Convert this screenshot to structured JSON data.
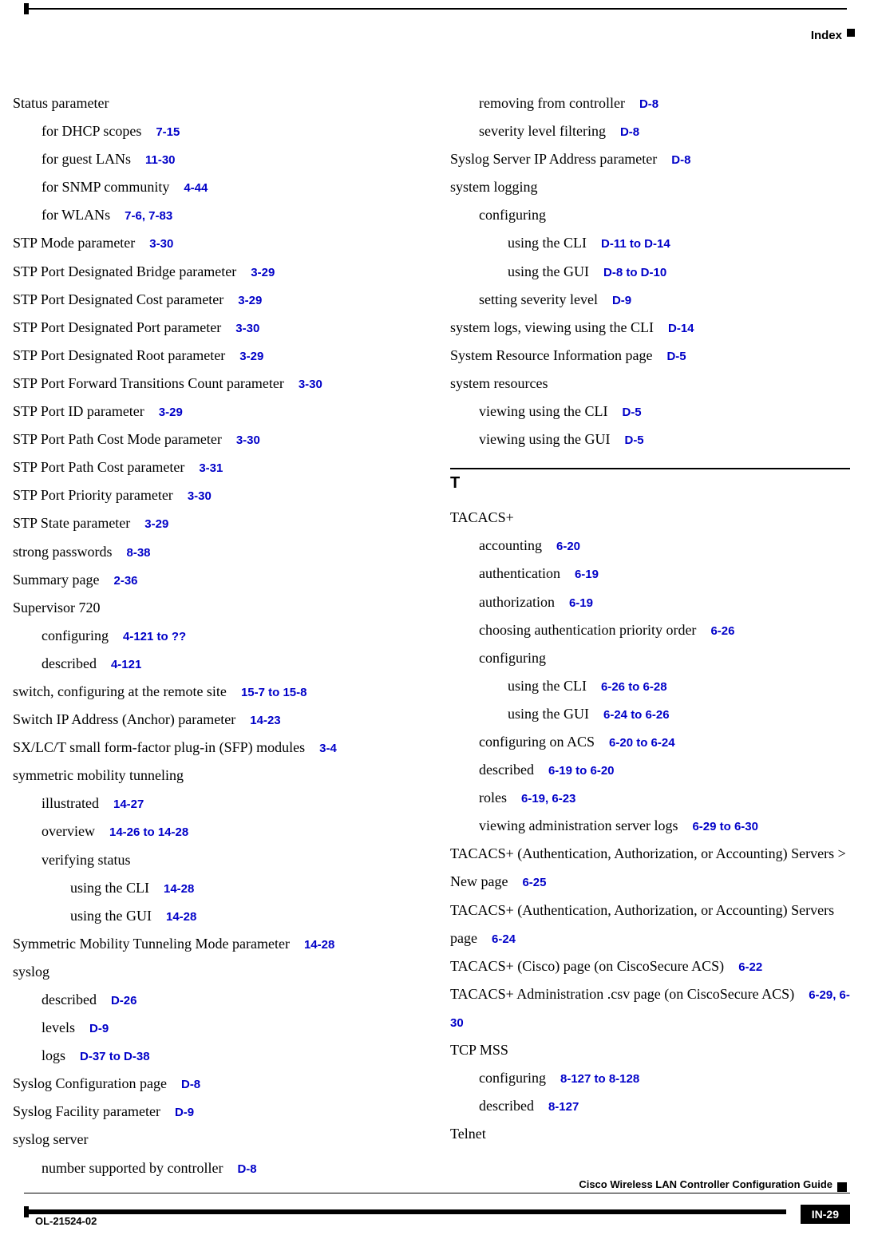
{
  "running_head": "Index",
  "footer": {
    "title": "Cisco Wireless LAN Controller Configuration Guide",
    "docid": "OL-21524-02",
    "pagenum": "IN-29"
  },
  "sections": {
    "T": "T"
  },
  "left": [
    {
      "lvl": 0,
      "text": "Status parameter"
    },
    {
      "lvl": 1,
      "text": "for DHCP scopes",
      "ref": "7-15"
    },
    {
      "lvl": 1,
      "text": "for guest LANs",
      "ref": "11-30"
    },
    {
      "lvl": 1,
      "text": "for SNMP community",
      "ref": "4-44"
    },
    {
      "lvl": 1,
      "text": "for WLANs",
      "ref": "7-6, 7-83"
    },
    {
      "lvl": 0,
      "text": "STP Mode parameter",
      "ref": "3-30"
    },
    {
      "lvl": 0,
      "text": "STP Port Designated Bridge parameter",
      "ref": "3-29"
    },
    {
      "lvl": 0,
      "text": "STP Port Designated Cost parameter",
      "ref": "3-29"
    },
    {
      "lvl": 0,
      "text": "STP Port Designated Port parameter",
      "ref": "3-30"
    },
    {
      "lvl": 0,
      "text": "STP Port Designated Root parameter",
      "ref": "3-29"
    },
    {
      "lvl": 0,
      "text": "STP Port Forward Transitions Count parameter",
      "ref": "3-30"
    },
    {
      "lvl": 0,
      "text": "STP Port ID parameter",
      "ref": "3-29"
    },
    {
      "lvl": 0,
      "text": "STP Port Path Cost Mode parameter",
      "ref": "3-30"
    },
    {
      "lvl": 0,
      "text": "STP Port Path Cost parameter",
      "ref": "3-31"
    },
    {
      "lvl": 0,
      "text": "STP Port Priority parameter",
      "ref": "3-30"
    },
    {
      "lvl": 0,
      "text": "STP State parameter",
      "ref": "3-29"
    },
    {
      "lvl": 0,
      "text": "strong passwords",
      "ref": "8-38"
    },
    {
      "lvl": 0,
      "text": "Summary page",
      "ref": "2-36"
    },
    {
      "lvl": 0,
      "text": "Supervisor 720"
    },
    {
      "lvl": 1,
      "text": "configuring",
      "ref": "4-121 to ??"
    },
    {
      "lvl": 1,
      "text": "described",
      "ref": "4-121"
    },
    {
      "lvl": 0,
      "text": "switch, configuring at the remote site",
      "ref": "15-7 to 15-8"
    },
    {
      "lvl": 0,
      "text": "Switch IP Address (Anchor) parameter",
      "ref": "14-23"
    },
    {
      "lvl": 0,
      "text": "SX/LC/T small form-factor plug-in (SFP) modules",
      "ref": "3-4"
    },
    {
      "lvl": 0,
      "text": "symmetric mobility tunneling"
    },
    {
      "lvl": 1,
      "text": "illustrated",
      "ref": "14-27"
    },
    {
      "lvl": 1,
      "text": "overview",
      "ref": "14-26 to 14-28"
    },
    {
      "lvl": 1,
      "text": "verifying status"
    },
    {
      "lvl": 2,
      "text": "using the CLI",
      "ref": "14-28"
    },
    {
      "lvl": 2,
      "text": "using the GUI",
      "ref": "14-28"
    },
    {
      "lvl": 0,
      "text": "Symmetric Mobility Tunneling Mode parameter",
      "ref": "14-28"
    },
    {
      "lvl": 0,
      "text": "syslog"
    },
    {
      "lvl": 1,
      "text": "described",
      "ref": "D-26"
    },
    {
      "lvl": 1,
      "text": "levels",
      "ref": "D-9"
    },
    {
      "lvl": 1,
      "text": "logs",
      "ref": "D-37 to D-38"
    },
    {
      "lvl": 0,
      "text": "Syslog Configuration page",
      "ref": "D-8"
    },
    {
      "lvl": 0,
      "text": "Syslog Facility parameter",
      "ref": "D-9"
    },
    {
      "lvl": 0,
      "text": "syslog server"
    },
    {
      "lvl": 1,
      "text": "number supported by controller",
      "ref": "D-8"
    }
  ],
  "right_top": [
    {
      "lvl": 1,
      "text": "removing from controller",
      "ref": "D-8"
    },
    {
      "lvl": 1,
      "text": "severity level filtering",
      "ref": "D-8"
    },
    {
      "lvl": 0,
      "text": "Syslog Server IP Address parameter",
      "ref": "D-8"
    },
    {
      "lvl": 0,
      "text": "system logging"
    },
    {
      "lvl": 1,
      "text": "configuring"
    },
    {
      "lvl": 2,
      "text": "using the CLI",
      "ref": "D-11 to D-14"
    },
    {
      "lvl": 2,
      "text": "using the GUI",
      "ref": "D-8 to D-10"
    },
    {
      "lvl": 1,
      "text": "setting severity level",
      "ref": "D-9"
    },
    {
      "lvl": 0,
      "text": "system logs, viewing using the CLI",
      "ref": "D-14"
    },
    {
      "lvl": 0,
      "text": "System Resource Information page",
      "ref": "D-5"
    },
    {
      "lvl": 0,
      "text": "system resources"
    },
    {
      "lvl": 1,
      "text": "viewing using the CLI",
      "ref": "D-5"
    },
    {
      "lvl": 1,
      "text": "viewing using the GUI",
      "ref": "D-5"
    }
  ],
  "right_T": [
    {
      "lvl": 0,
      "text": "TACACS+"
    },
    {
      "lvl": 1,
      "text": "accounting",
      "ref": "6-20"
    },
    {
      "lvl": 1,
      "text": "authentication",
      "ref": "6-19"
    },
    {
      "lvl": 1,
      "text": "authorization",
      "ref": "6-19"
    },
    {
      "lvl": 1,
      "text": "choosing authentication priority order",
      "ref": "6-26"
    },
    {
      "lvl": 1,
      "text": "configuring"
    },
    {
      "lvl": 2,
      "text": "using the CLI",
      "ref": "6-26 to 6-28"
    },
    {
      "lvl": 2,
      "text": "using the GUI",
      "ref": "6-24 to 6-26"
    },
    {
      "lvl": 1,
      "text": "configuring on ACS",
      "ref": "6-20 to 6-24"
    },
    {
      "lvl": 1,
      "text": "described",
      "ref": "6-19 to 6-20"
    },
    {
      "lvl": 1,
      "text": "roles",
      "ref": "6-19, 6-23"
    },
    {
      "lvl": 1,
      "text": "viewing administration server logs",
      "ref": "6-29 to 6-30"
    },
    {
      "lvl": 0,
      "text": "TACACS+ (Authentication, Authorization, or Accounting) Servers > New page",
      "ref": "6-25"
    },
    {
      "lvl": 0,
      "text": "TACACS+ (Authentication, Authorization, or Accounting) Servers page",
      "ref": "6-24"
    },
    {
      "lvl": 0,
      "text": "TACACS+ (Cisco) page (on CiscoSecure ACS)",
      "ref": "6-22"
    },
    {
      "lvl": 0,
      "text": "TACACS+ Administration .csv page (on CiscoSecure ACS)",
      "ref": "6-29, 6-30"
    },
    {
      "lvl": 0,
      "text": "TCP MSS"
    },
    {
      "lvl": 1,
      "text": "configuring",
      "ref": "8-127 to 8-128"
    },
    {
      "lvl": 1,
      "text": "described",
      "ref": "8-127"
    },
    {
      "lvl": 0,
      "text": "Telnet"
    }
  ]
}
